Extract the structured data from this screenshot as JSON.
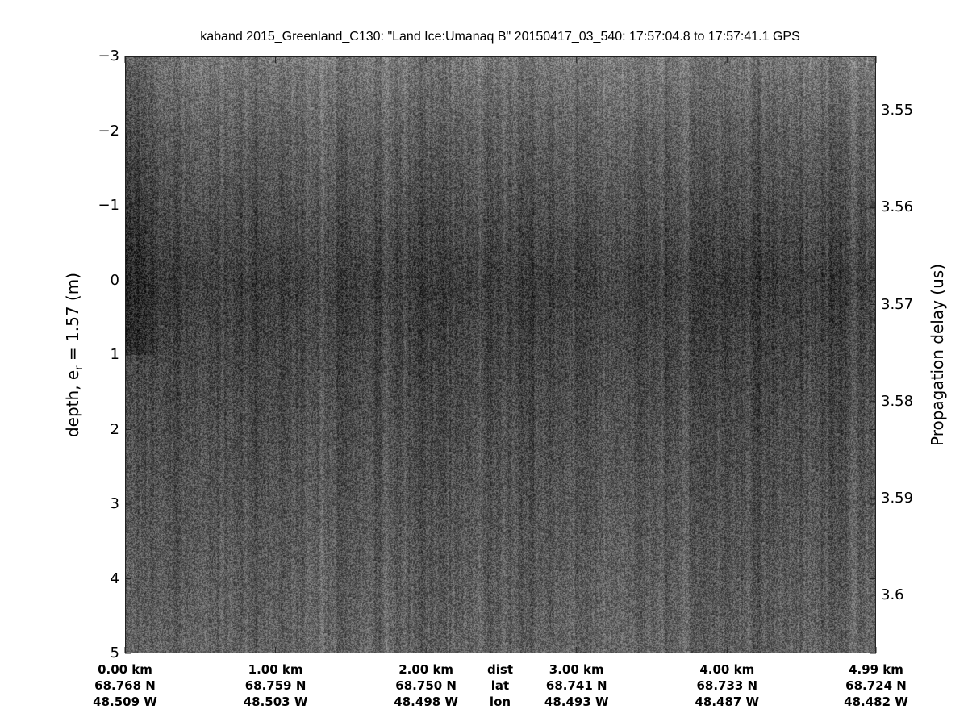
{
  "chart_data": {
    "type": "heatmap",
    "colormap": "gray",
    "title": "kaband 2015_Greenland_C130: \"Land Ice:Umanaq B\"  20150417_03_540: 17:57:04.8 to 17:57:41.1 GPS",
    "ylabel": {
      "main": "depth, e",
      "sub": "r",
      "rest": " = 1.57 (m)"
    },
    "ylim": [
      -3,
      5
    ],
    "yticks": [
      "-3",
      "-2",
      "-1",
      "0",
      "1",
      "2",
      "3",
      "4",
      "5"
    ],
    "right_ylabel": "Propagation delay (us)",
    "right_yticks": [
      "3.55",
      "3.56",
      "3.57",
      "3.58",
      "3.59",
      "3.6"
    ],
    "right_ylim": [
      3.5444,
      3.606
    ],
    "xlim_km": [
      0,
      4.99
    ],
    "x_rows": {
      "labels": [
        "dist",
        "lat",
        "lon"
      ],
      "ticks": [
        {
          "km": 0.0,
          "dist": "0.00 km",
          "lat": "68.768 N",
          "lon": "48.509 W"
        },
        {
          "km": 1.0,
          "dist": "1.00 km",
          "lat": "68.759 N",
          "lon": "48.503 W"
        },
        {
          "km": 2.0,
          "dist": "2.00 km",
          "lat": "68.750 N",
          "lon": "48.498 W"
        },
        {
          "km": 3.0,
          "dist": "3.00 km",
          "lat": "68.741 N",
          "lon": "48.493 W"
        },
        {
          "km": 4.0,
          "dist": "4.00 km",
          "lat": "68.733 N",
          "lon": "48.487 W"
        },
        {
          "km": 4.99,
          "dist": "4.99 km",
          "lat": "68.724 N",
          "lon": "48.482 W"
        }
      ]
    }
  }
}
